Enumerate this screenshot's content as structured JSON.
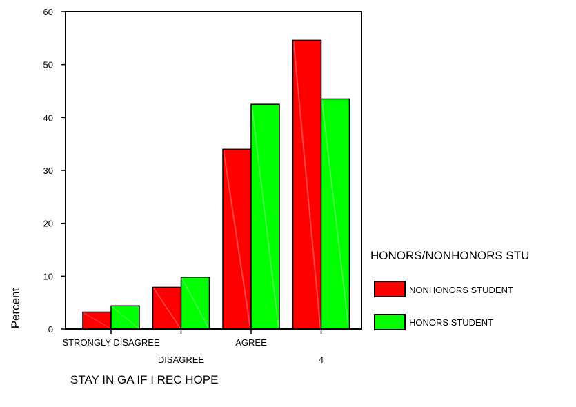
{
  "chart_data": {
    "type": "bar",
    "title": "",
    "xlabel": "STAY IN GA IF I REC HOPE",
    "ylabel": "Percent",
    "ylim": [
      0,
      60
    ],
    "yticks": [
      "0",
      "10",
      "20",
      "30",
      "40",
      "50",
      "60"
    ],
    "categories": [
      "STRONGLY DISAGREE",
      "DISAGREE",
      "AGREE",
      "4"
    ],
    "legend_title": "HONORS/NONHONORS STU",
    "legend_position": "right",
    "series": [
      {
        "name": "NONHONORS STUDENT",
        "color": "#ff0000",
        "values": [
          3.2,
          7.9,
          34.0,
          54.6
        ]
      },
      {
        "name": "HONORS STUDENT",
        "color": "#00ff00",
        "values": [
          4.4,
          9.8,
          42.5,
          43.5
        ]
      }
    ]
  }
}
